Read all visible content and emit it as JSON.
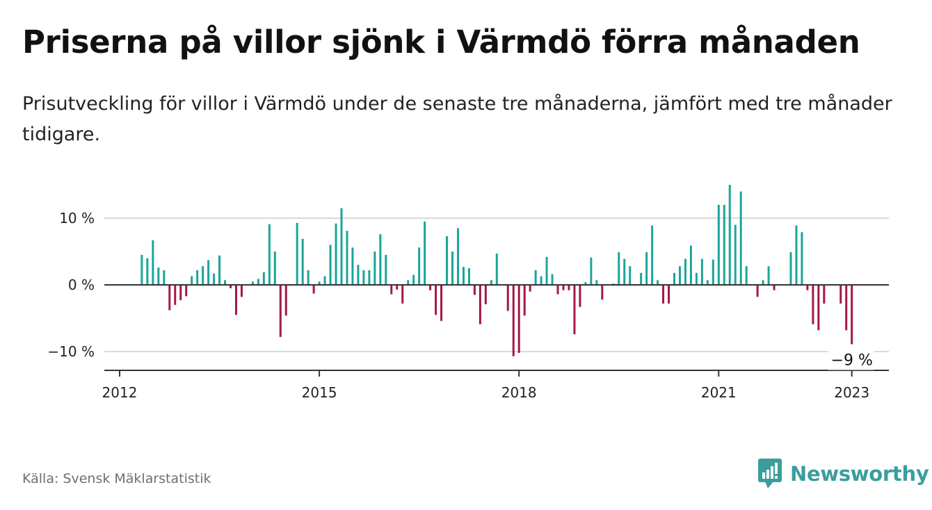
{
  "chart_data": {
    "type": "bar",
    "title": "Priserna på villor sjönk i Värmdö förra månaden",
    "subtitle": "Prisutveckling för villor i Värmdö under de senaste tre månaderna, jämfört med tre månader tidigare.",
    "unit": "%",
    "ylim": [
      -12.5,
      15
    ],
    "y_ticks": [
      {
        "value": 10,
        "label": "10 %"
      },
      {
        "value": 0,
        "label": "0 %"
      },
      {
        "value": -10,
        "label": "−10 %"
      }
    ],
    "x_ticks": [
      "2012",
      "2015",
      "2018",
      "2021",
      "2023"
    ],
    "x_start": "2012-01",
    "grid": true,
    "positive_color": "#1aa59a",
    "negative_color": "#a3174a",
    "annotation": {
      "label": "−9 %",
      "index": 132
    },
    "values": [
      0,
      0,
      0,
      0,
      4.5,
      4,
      6.7,
      2.6,
      2.2,
      -3.8,
      -3,
      -2.3,
      -1.7,
      1.3,
      2.2,
      2.8,
      3.7,
      1.7,
      4.4,
      0.7,
      -0.5,
      -4.5,
      -1.8,
      0,
      0.5,
      0.9,
      1.9,
      9.1,
      5,
      -7.8,
      -4.6,
      0,
      9.3,
      6.9,
      2.2,
      -1.3,
      0.5,
      1.3,
      6,
      9.2,
      11.5,
      8.1,
      5.6,
      3,
      2.2,
      2.2,
      5,
      7.6,
      4.5,
      -1.4,
      -0.7,
      -2.8,
      0.7,
      1.5,
      5.6,
      9.5,
      -0.8,
      -4.5,
      -5.4,
      7.3,
      5,
      8.5,
      2.7,
      2.5,
      -1.5,
      -5.9,
      -2.9,
      0.7,
      4.7,
      0,
      -3.9,
      -10.7,
      -10.2,
      -4.6,
      -1,
      2.2,
      1.3,
      4.2,
      1.6,
      -1.4,
      -0.8,
      -0.8,
      -7.4,
      -3.3,
      0.4,
      4.1,
      0.7,
      -2.2,
      0,
      0.2,
      4.9,
      3.9,
      2.8,
      0,
      1.8,
      4.9,
      8.9,
      0.7,
      -2.8,
      -2.8,
      1.8,
      2.8,
      3.9,
      5.9,
      1.8,
      3.9,
      0.7,
      3.8,
      12,
      12,
      15,
      9,
      14,
      2.8,
      0,
      -1.8,
      0.7,
      2.8,
      -0.8,
      0,
      0,
      4.9,
      8.9,
      7.9,
      -0.8,
      -5.9,
      -6.8,
      -2.8,
      0,
      0,
      -2.8,
      -6.8,
      -8.9
    ]
  },
  "footer": {
    "source": "Källa: Svensk Mäklarstatistik",
    "brand": "Newsworthy"
  },
  "colors": {
    "axis": "#333333",
    "grid": "#d9d9d9",
    "brand": "#3a9e9c"
  }
}
